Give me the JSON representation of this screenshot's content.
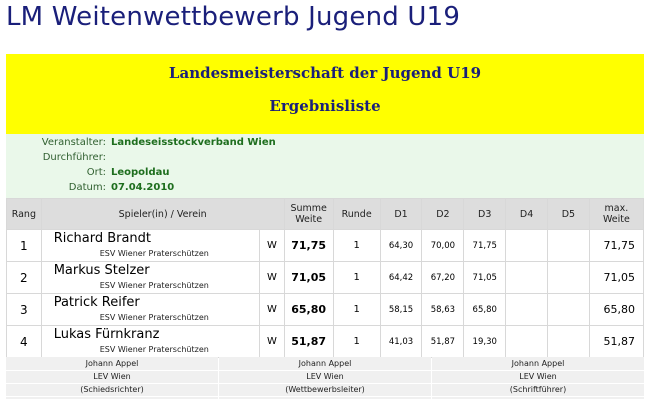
{
  "page_title": "LM Weitenwettbewerb Jugend U19",
  "banner": {
    "line1": "Landesmeisterschaft der Jugend U19",
    "line2": "Ergebnisliste"
  },
  "info": [
    {
      "label": "Veranstalter:",
      "value": "Landeseisstockverband Wien"
    },
    {
      "label": "Durchführer:",
      "value": ""
    },
    {
      "label": "Ort:",
      "value": "Leopoldau"
    },
    {
      "label": "Datum:",
      "value": "07.04.2010"
    }
  ],
  "table": {
    "headers": {
      "rang": "Rang",
      "spieler": "Spieler(in) / Verein",
      "summe_l1": "Summe",
      "summe_l2": "Weite",
      "runde": "Runde",
      "d1": "D1",
      "d2": "D2",
      "d3": "D3",
      "d4": "D4",
      "d5": "D5",
      "max_l1": "max.",
      "max_l2": "Weite"
    },
    "rows": [
      {
        "rank": "1",
        "name": "Richard Brandt",
        "club": "ESV Wiener Praterschützen",
        "gender": "W",
        "sum": "71,75",
        "runde": "1",
        "d1": "64,30",
        "d2": "70,00",
        "d3": "71,75",
        "d4": "",
        "d5": "",
        "max": "71,75"
      },
      {
        "rank": "2",
        "name": "Markus Stelzer",
        "club": "ESV Wiener Praterschützen",
        "gender": "W",
        "sum": "71,05",
        "runde": "1",
        "d1": "64,42",
        "d2": "67,20",
        "d3": "71,05",
        "d4": "",
        "d5": "",
        "max": "71,05"
      },
      {
        "rank": "3",
        "name": "Patrick Reifer",
        "club": "ESV Wiener Praterschützen",
        "gender": "W",
        "sum": "65,80",
        "runde": "1",
        "d1": "58,15",
        "d2": "58,63",
        "d3": "65,80",
        "d4": "",
        "d5": "",
        "max": "65,80"
      },
      {
        "rank": "4",
        "name": "Lukas Fürnkranz",
        "club": "ESV Wiener Praterschützen",
        "gender": "W",
        "sum": "51,87",
        "runde": "1",
        "d1": "41,03",
        "d2": "51,87",
        "d3": "19,30",
        "d4": "",
        "d5": "",
        "max": "51,87"
      }
    ]
  },
  "officials": [
    {
      "name": "Johann Appel",
      "org": "LEV Wien",
      "role": "(Schiedsrichter)"
    },
    {
      "name": "Johann Appel",
      "org": "LEV Wien",
      "role": "(Wettbewerbsleiter)"
    },
    {
      "name": "Johann Appel",
      "org": "LEV Wien",
      "role": "(Schriftführer)"
    }
  ]
}
